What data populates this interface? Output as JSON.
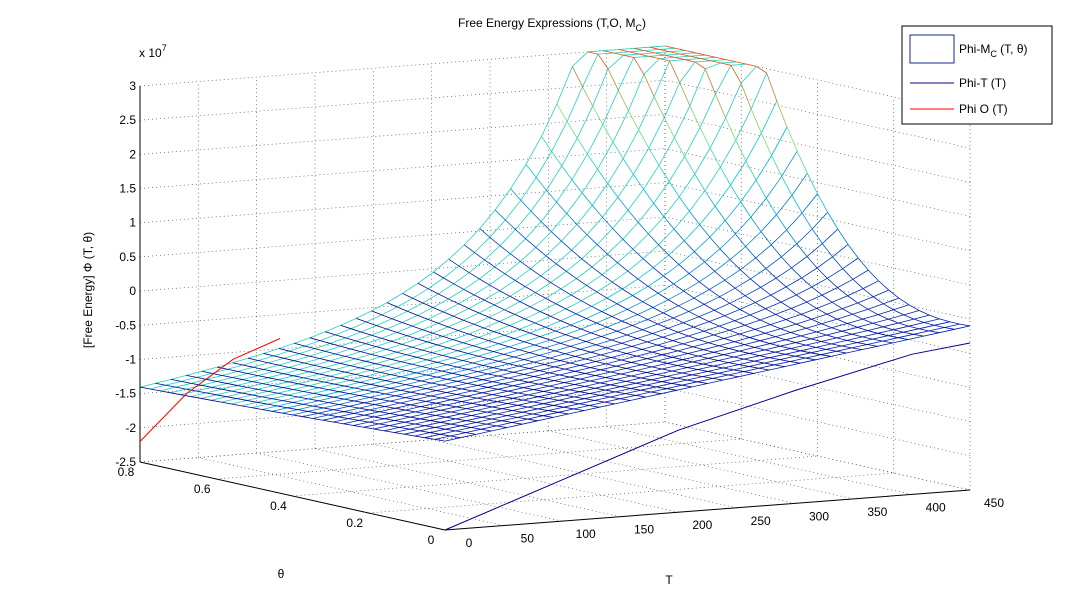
{
  "chart_data": {
    "type": "surface3d",
    "title": "Free Energy Expressions (T,O, M",
    "title_sub": "C",
    "title_end": ")",
    "zlabel": "[Free Energy] Φ (T, θ)",
    "xlabel": "T",
    "ylabel": "θ",
    "z_exponent_base": "x 10",
    "z_exponent": "7",
    "x_ticks": [
      "0",
      "50",
      "100",
      "150",
      "200",
      "250",
      "300",
      "350",
      "400",
      "450"
    ],
    "y_ticks": [
      "0",
      "0.2",
      "0.4",
      "0.6",
      "0.8"
    ],
    "z_ticks": [
      "-2.5",
      "-2",
      "-1.5",
      "-1",
      "-0.5",
      "0",
      "0.5",
      "1",
      "1.5",
      "2",
      "2.5",
      "3"
    ],
    "xlim": [
      0,
      450
    ],
    "ylim": [
      0,
      0.8
    ],
    "zlim": [
      -2.5,
      3
    ],
    "grid": true,
    "legend_position": "top-right",
    "legend": [
      {
        "label_main": "Phi-M",
        "label_sub": "C",
        "label_end": " (T, θ)",
        "kind": "surface",
        "color": "#1a2a8c"
      },
      {
        "label_main": "Phi-T (T)",
        "label_sub": "",
        "label_end": "",
        "kind": "line",
        "color": "#00008b"
      },
      {
        "label_main": "Phi O (T)",
        "label_sub": "",
        "label_end": "",
        "kind": "line",
        "color": "#ff0000"
      }
    ],
    "series": [
      {
        "name": "Phi-T (T)",
        "color": "#00008b",
        "points": [
          [
            0,
            0,
            -2.5
          ],
          [
            100,
            0,
            -1.9
          ],
          [
            200,
            0,
            -1.3
          ],
          [
            300,
            0,
            -0.85
          ],
          [
            400,
            0,
            -0.45
          ],
          [
            450,
            0,
            -0.35
          ]
        ]
      },
      {
        "name": "Phi O (T)",
        "color": "#ff0000",
        "points": [
          [
            0,
            0.8,
            -2.2
          ],
          [
            40,
            0.8,
            -1.55
          ],
          [
            80,
            0.8,
            -1.1
          ],
          [
            120,
            0.8,
            -0.85
          ]
        ]
      }
    ]
  }
}
